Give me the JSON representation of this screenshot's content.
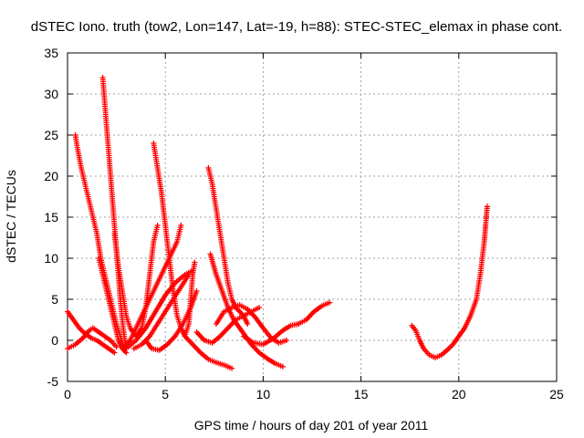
{
  "chart_data": {
    "type": "scatter",
    "title": "dSTEC Iono. truth (tow2, Lon=147, Lat=-19, h=88): STEC-STEC_elemax in phase cont.",
    "xlabel": "GPS time / hours of day 201 of year 2011",
    "ylabel": "dSTEC  / TECUs",
    "xlim": [
      0,
      25
    ],
    "ylim": [
      -5,
      35
    ],
    "xticks": [
      0,
      5,
      10,
      15,
      20,
      25
    ],
    "yticks": [
      -5,
      0,
      5,
      10,
      15,
      20,
      25,
      30,
      35
    ],
    "grid": true,
    "marker": "plus",
    "color": "#ff0000",
    "series": [
      {
        "points": [
          [
            0.4,
            25
          ],
          [
            0.5,
            23.5
          ],
          [
            0.7,
            21
          ],
          [
            0.9,
            19
          ],
          [
            1.1,
            17
          ],
          [
            1.3,
            15
          ],
          [
            1.5,
            13
          ],
          [
            1.7,
            10
          ],
          [
            1.9,
            8
          ],
          [
            2.1,
            6
          ],
          [
            2.3,
            4
          ],
          [
            2.5,
            2
          ],
          [
            2.7,
            0.5
          ],
          [
            2.9,
            -1
          ]
        ]
      },
      {
        "points": [
          [
            1.8,
            32
          ],
          [
            1.9,
            29
          ],
          [
            2.0,
            26
          ],
          [
            2.1,
            23
          ],
          [
            2.2,
            20
          ],
          [
            2.3,
            17
          ],
          [
            2.4,
            14
          ],
          [
            2.5,
            11
          ],
          [
            2.6,
            8
          ],
          [
            2.7,
            5
          ],
          [
            2.8,
            2.5
          ],
          [
            2.9,
            0.5
          ],
          [
            3.0,
            -0.8
          ]
        ]
      },
      {
        "points": [
          [
            1.6,
            10
          ],
          [
            1.8,
            8
          ],
          [
            2.0,
            6
          ],
          [
            2.2,
            4
          ],
          [
            2.4,
            2
          ],
          [
            2.6,
            0
          ],
          [
            2.8,
            -1
          ],
          [
            3.0,
            -1.5
          ]
        ]
      },
      {
        "points": [
          [
            0,
            3.5
          ],
          [
            0.3,
            2.5
          ],
          [
            0.6,
            1.5
          ],
          [
            0.9,
            0.8
          ],
          [
            1.2,
            0.3
          ],
          [
            1.5,
            0
          ],
          [
            1.8,
            -0.5
          ],
          [
            2.1,
            -1
          ],
          [
            2.4,
            -1.5
          ]
        ]
      },
      {
        "points": [
          [
            0,
            -1
          ],
          [
            0.4,
            -0.5
          ],
          [
            0.8,
            0.3
          ],
          [
            1.1,
            1.2
          ],
          [
            1.3,
            1.5
          ],
          [
            1.6,
            1
          ],
          [
            1.9,
            0.5
          ],
          [
            2.2,
            0
          ],
          [
            2.5,
            -0.8
          ]
        ]
      },
      {
        "points": [
          [
            2.4,
            13
          ],
          [
            2.6,
            9
          ],
          [
            2.8,
            6
          ],
          [
            3.0,
            3
          ],
          [
            3.2,
            1.5
          ],
          [
            3.5,
            0.5
          ],
          [
            3.8,
            1.5
          ],
          [
            4.0,
            4
          ],
          [
            4.2,
            8
          ],
          [
            4.4,
            12
          ],
          [
            4.6,
            14
          ]
        ]
      },
      {
        "points": [
          [
            2.8,
            -1
          ],
          [
            3.2,
            0
          ],
          [
            3.6,
            2
          ],
          [
            4.0,
            4
          ],
          [
            4.4,
            6
          ],
          [
            4.8,
            8
          ],
          [
            5.2,
            10
          ],
          [
            5.6,
            12
          ],
          [
            5.8,
            14
          ]
        ]
      },
      {
        "points": [
          [
            4.4,
            24
          ],
          [
            4.6,
            21
          ],
          [
            4.8,
            18
          ],
          [
            5.0,
            14
          ],
          [
            5.2,
            10
          ],
          [
            5.4,
            6
          ],
          [
            5.6,
            3
          ],
          [
            5.8,
            1.5
          ],
          [
            6.0,
            0.5
          ],
          [
            6.2,
            2
          ],
          [
            6.3,
            5
          ],
          [
            6.4,
            8
          ],
          [
            6.5,
            9.5
          ]
        ]
      },
      {
        "points": [
          [
            3.0,
            -1
          ],
          [
            3.5,
            0
          ],
          [
            4.0,
            1.5
          ],
          [
            4.5,
            3.5
          ],
          [
            5.0,
            5.5
          ],
          [
            5.5,
            7
          ],
          [
            6.0,
            8
          ],
          [
            6.4,
            8.5
          ]
        ]
      },
      {
        "points": [
          [
            3.4,
            -1
          ],
          [
            3.8,
            -0.5
          ],
          [
            4.2,
            0.5
          ],
          [
            4.6,
            2
          ],
          [
            5.0,
            3.5
          ],
          [
            5.4,
            5
          ],
          [
            5.8,
            6.5
          ],
          [
            6.2,
            8
          ]
        ]
      },
      {
        "points": [
          [
            4.0,
            0
          ],
          [
            4.3,
            -1
          ],
          [
            4.7,
            -1.2
          ],
          [
            5.1,
            -0.5
          ],
          [
            5.5,
            0.5
          ],
          [
            5.9,
            2
          ],
          [
            6.3,
            4
          ],
          [
            6.6,
            6
          ]
        ]
      },
      {
        "points": [
          [
            6.0,
            0.5
          ],
          [
            6.4,
            -0.5
          ],
          [
            6.8,
            -1.5
          ],
          [
            7.2,
            -2.3
          ],
          [
            7.6,
            -2.7
          ],
          [
            8.0,
            -3
          ],
          [
            8.4,
            -3.4
          ]
        ]
      },
      {
        "points": [
          [
            6.6,
            1
          ],
          [
            7.0,
            0
          ],
          [
            7.4,
            -0.3
          ],
          [
            7.8,
            0.5
          ],
          [
            8.2,
            1.5
          ],
          [
            8.6,
            2.5
          ],
          [
            9.0,
            3
          ],
          [
            9.4,
            3.5
          ],
          [
            9.8,
            4
          ]
        ]
      },
      {
        "points": [
          [
            7.2,
            21
          ],
          [
            7.4,
            19
          ],
          [
            7.6,
            16
          ],
          [
            7.8,
            13
          ],
          [
            8.0,
            10
          ],
          [
            8.2,
            7
          ],
          [
            8.4,
            5
          ],
          [
            8.6,
            4
          ],
          [
            8.8,
            3.5
          ],
          [
            9.0,
            3
          ],
          [
            9.2,
            2
          ]
        ]
      },
      {
        "points": [
          [
            7.3,
            10.5
          ],
          [
            7.6,
            8
          ],
          [
            7.9,
            6
          ],
          [
            8.2,
            4
          ],
          [
            8.5,
            2.5
          ],
          [
            8.8,
            1.5
          ],
          [
            9.1,
            0.5
          ],
          [
            9.4,
            -0.5
          ],
          [
            9.8,
            -1.5
          ],
          [
            10.2,
            -2.2
          ],
          [
            10.6,
            -2.8
          ],
          [
            11.0,
            -3.2
          ]
        ]
      },
      {
        "points": [
          [
            7.6,
            2
          ],
          [
            8.0,
            3.5
          ],
          [
            8.4,
            4
          ],
          [
            8.8,
            4.3
          ],
          [
            9.2,
            3.8
          ],
          [
            9.6,
            2.8
          ],
          [
            10.0,
            1.5
          ],
          [
            10.4,
            0.3
          ],
          [
            10.8,
            -0.3
          ],
          [
            11.2,
            0
          ]
        ]
      },
      {
        "points": [
          [
            9.0,
            0.5
          ],
          [
            9.5,
            -0.3
          ],
          [
            10.0,
            -0.5
          ],
          [
            10.5,
            0.2
          ],
          [
            11.0,
            1.2
          ],
          [
            11.4,
            1.8
          ],
          [
            11.8,
            2
          ]
        ]
      },
      {
        "points": [
          [
            11.8,
            2
          ],
          [
            12.2,
            2.5
          ],
          [
            12.6,
            3.5
          ],
          [
            13.0,
            4.2
          ],
          [
            13.4,
            4.6
          ]
        ]
      },
      {
        "points": [
          [
            17.6,
            1.8
          ],
          [
            17.8,
            1.2
          ],
          [
            18.0,
            0
          ],
          [
            18.2,
            -1
          ],
          [
            18.5,
            -1.8
          ],
          [
            18.8,
            -2.1
          ],
          [
            19.1,
            -1.8
          ],
          [
            19.4,
            -1.2
          ],
          [
            19.7,
            -0.5
          ],
          [
            20.0,
            0.5
          ],
          [
            20.3,
            1.5
          ],
          [
            20.6,
            3
          ],
          [
            20.9,
            5
          ],
          [
            21.1,
            8
          ],
          [
            21.3,
            12
          ],
          [
            21.45,
            16.3
          ]
        ]
      }
    ]
  }
}
